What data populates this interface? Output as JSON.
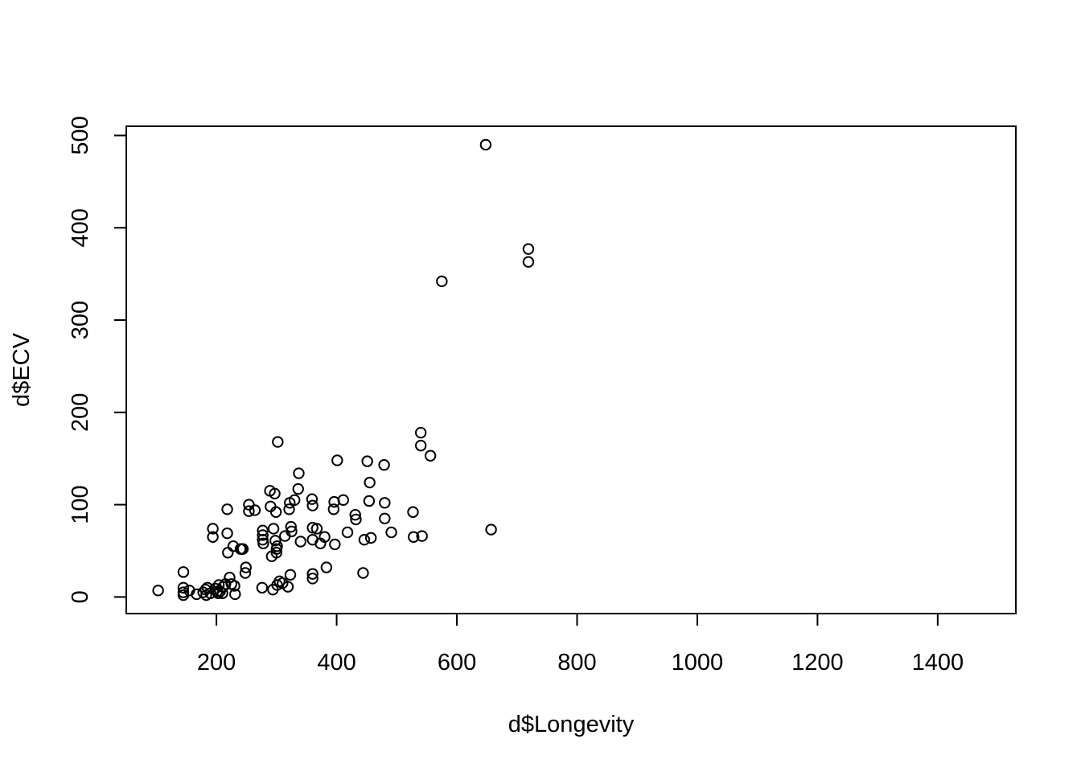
{
  "chart_data": {
    "type": "scatter",
    "title": "",
    "xlabel": "d$Longevity",
    "ylabel": "d$ECV",
    "xlim": [
      50,
      1530
    ],
    "ylim": [
      -18,
      510
    ],
    "xticks": [
      200,
      400,
      600,
      800,
      1000,
      1200,
      1400
    ],
    "yticks": [
      0,
      100,
      200,
      300,
      400,
      500
    ],
    "grid": false,
    "marker": "open-circle",
    "colors": {
      "marker": "#000000",
      "axis": "#000000",
      "background": "#ffffff"
    },
    "points": [
      [
        103,
        7
      ],
      [
        145,
        27
      ],
      [
        145,
        10
      ],
      [
        145,
        5
      ],
      [
        145,
        2
      ],
      [
        155,
        7
      ],
      [
        167,
        3
      ],
      [
        178,
        5
      ],
      [
        182,
        8
      ],
      [
        183,
        2
      ],
      [
        185,
        10
      ],
      [
        190,
        4
      ],
      [
        194,
        74
      ],
      [
        194,
        65
      ],
      [
        198,
        9
      ],
      [
        201,
        6
      ],
      [
        203,
        4
      ],
      [
        204,
        13
      ],
      [
        206,
        6
      ],
      [
        210,
        4
      ],
      [
        211,
        11
      ],
      [
        215,
        14
      ],
      [
        218,
        95
      ],
      [
        218,
        69
      ],
      [
        219,
        48
      ],
      [
        222,
        21
      ],
      [
        225,
        14
      ],
      [
        228,
        55
      ],
      [
        230,
        12
      ],
      [
        231,
        3
      ],
      [
        240,
        52
      ],
      [
        242,
        52
      ],
      [
        244,
        52
      ],
      [
        248,
        26
      ],
      [
        249,
        32
      ],
      [
        254,
        100
      ],
      [
        254,
        93
      ],
      [
        264,
        94
      ],
      [
        276,
        10
      ],
      [
        277,
        72
      ],
      [
        277,
        67
      ],
      [
        277,
        62
      ],
      [
        278,
        58
      ],
      [
        289,
        115
      ],
      [
        290,
        98
      ],
      [
        292,
        44
      ],
      [
        294,
        8
      ],
      [
        295,
        74
      ],
      [
        297,
        112
      ],
      [
        298,
        61
      ],
      [
        299,
        92
      ],
      [
        300,
        52
      ],
      [
        300,
        48
      ],
      [
        301,
        55
      ],
      [
        301,
        13
      ],
      [
        302,
        168
      ],
      [
        305,
        17
      ],
      [
        310,
        15
      ],
      [
        314,
        66
      ],
      [
        319,
        11
      ],
      [
        321,
        95
      ],
      [
        322,
        102
      ],
      [
        323,
        24
      ],
      [
        324,
        76
      ],
      [
        325,
        71
      ],
      [
        330,
        105
      ],
      [
        336,
        117
      ],
      [
        337,
        134
      ],
      [
        340,
        60
      ],
      [
        359,
        106
      ],
      [
        360,
        99
      ],
      [
        360,
        75
      ],
      [
        360,
        62
      ],
      [
        360,
        25
      ],
      [
        360,
        20
      ],
      [
        367,
        74
      ],
      [
        373,
        58
      ],
      [
        380,
        65
      ],
      [
        383,
        32
      ],
      [
        395,
        95
      ],
      [
        396,
        103
      ],
      [
        397,
        57
      ],
      [
        401,
        148
      ],
      [
        411,
        105
      ],
      [
        418,
        70
      ],
      [
        431,
        89
      ],
      [
        432,
        84
      ],
      [
        444,
        26
      ],
      [
        446,
        62
      ],
      [
        451,
        147
      ],
      [
        454,
        104
      ],
      [
        455,
        124
      ],
      [
        457,
        64
      ],
      [
        479,
        143
      ],
      [
        480,
        102
      ],
      [
        480,
        85
      ],
      [
        491,
        70
      ],
      [
        527,
        92
      ],
      [
        528,
        65
      ],
      [
        540,
        178
      ],
      [
        540,
        164
      ],
      [
        542,
        66
      ],
      [
        556,
        153
      ],
      [
        575,
        342
      ],
      [
        648,
        490
      ],
      [
        657,
        73
      ],
      [
        719,
        377
      ],
      [
        719,
        363
      ]
    ]
  }
}
